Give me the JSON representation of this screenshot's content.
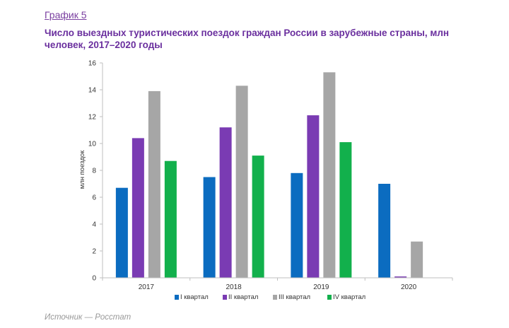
{
  "header": {
    "label": "График 5",
    "title": "Число выездных туристических поездок граждан России в зарубежные страны, млн человек, 2017–2020 годы"
  },
  "footer": {
    "source": "Источник — Росстат"
  },
  "chart_data": {
    "type": "bar",
    "categories": [
      "2017",
      "2018",
      "2019",
      "2020"
    ],
    "series": [
      {
        "name": "I квартал",
        "color": "#0b6cc0",
        "values": [
          6.7,
          7.5,
          7.8,
          7.0
        ]
      },
      {
        "name": "II квартал",
        "color": "#7a3bb3",
        "values": [
          10.4,
          11.2,
          12.1,
          0.1
        ]
      },
      {
        "name": "III квартал",
        "color": "#a6a6a6",
        "values": [
          13.9,
          14.3,
          15.3,
          2.7
        ]
      },
      {
        "name": "IV квартал",
        "color": "#12b04c",
        "values": [
          8.7,
          9.1,
          10.1,
          null
        ]
      }
    ],
    "ylabel": "млн поездок",
    "ylim": [
      0,
      16
    ],
    "yticks": [
      "0",
      "2",
      "4",
      "6",
      "8",
      "10",
      "12",
      "14",
      "16"
    ],
    "grid": false,
    "legend": "bottom"
  }
}
